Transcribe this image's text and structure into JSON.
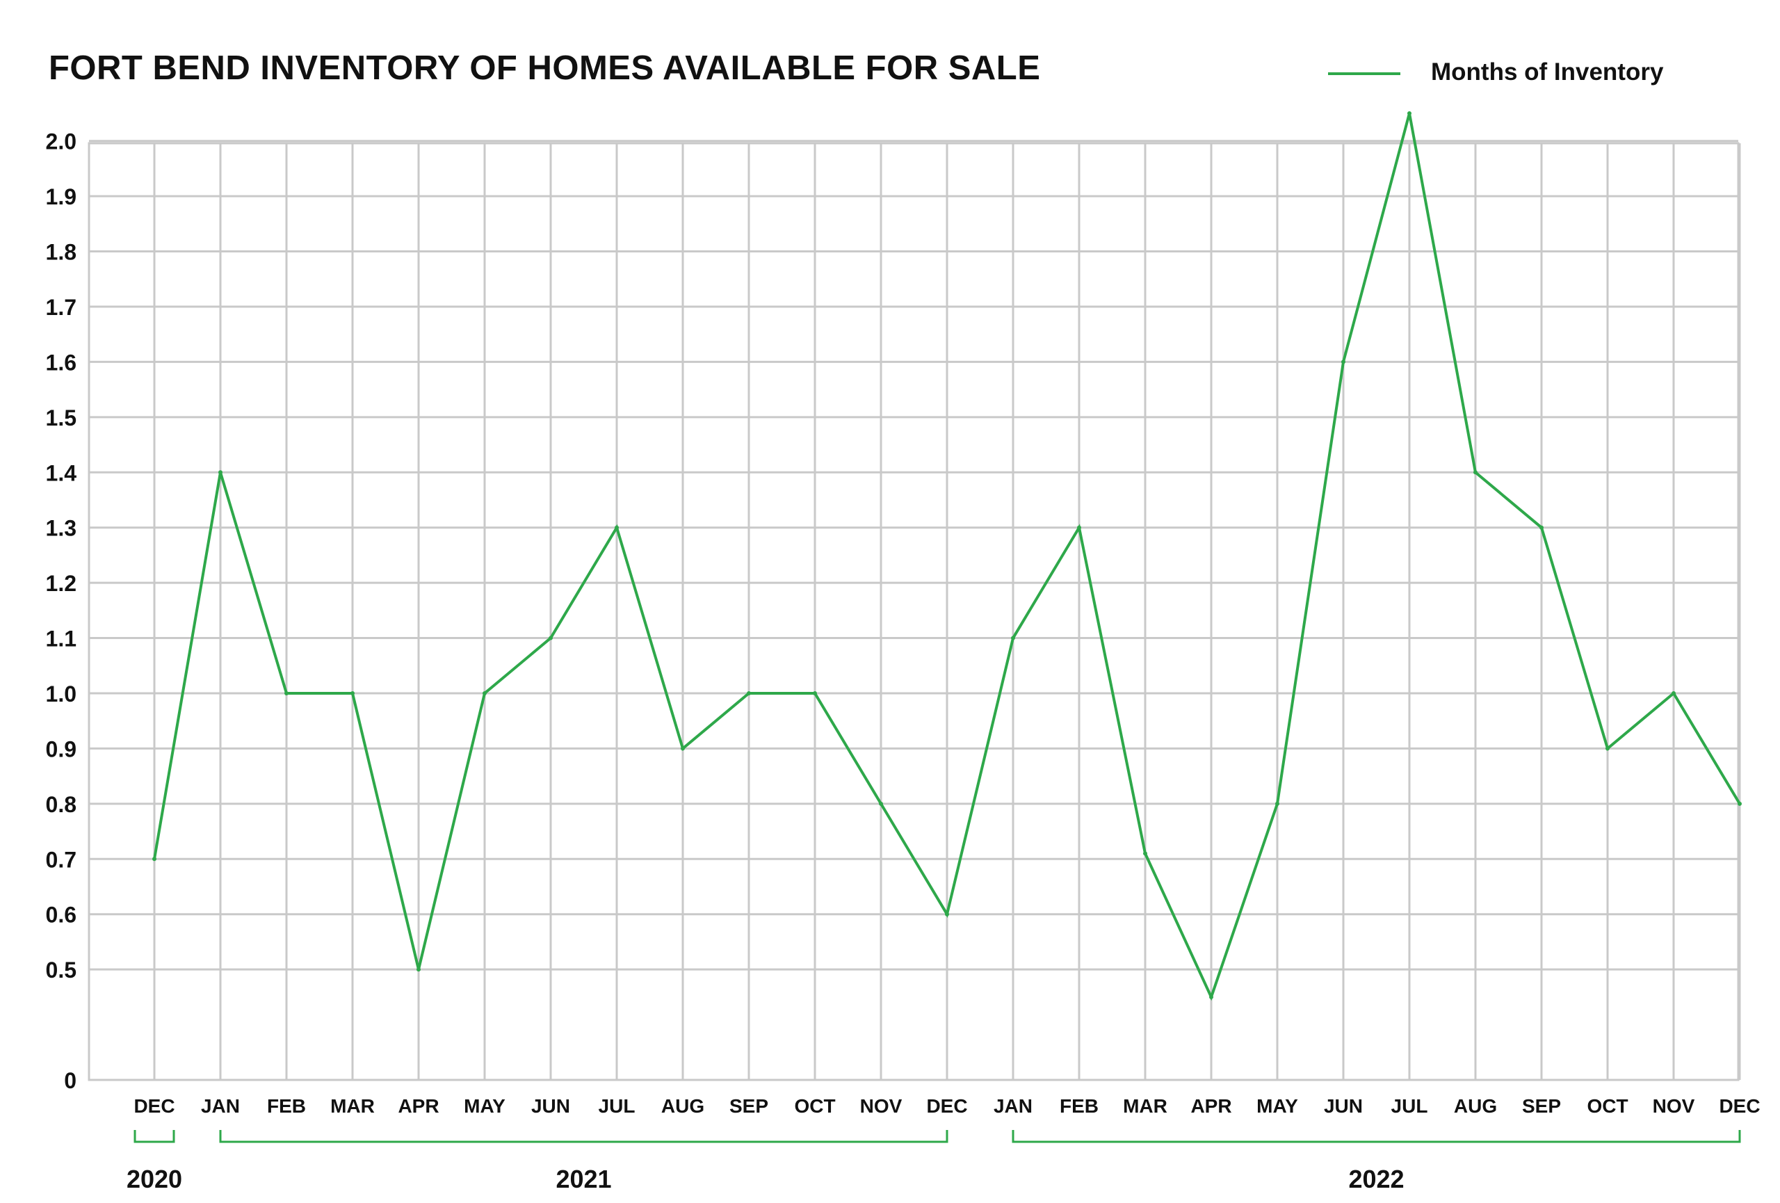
{
  "chart_data": {
    "type": "line",
    "title": "FORT BEND INVENTORY OF HOMES AVAILABLE FOR SALE",
    "xlabel": "",
    "ylabel": "",
    "grid": true,
    "legend_position": "top-right",
    "colors": {
      "series": "#2ea84a",
      "grid": "#c9c9c9",
      "text": "#111111"
    },
    "categories": [
      "DEC",
      "JAN",
      "FEB",
      "MAR",
      "APR",
      "MAY",
      "JUN",
      "JUL",
      "AUG",
      "SEP",
      "OCT",
      "NOV",
      "DEC",
      "JAN",
      "FEB",
      "MAR",
      "APR",
      "MAY",
      "JUN",
      "JUL",
      "AUG",
      "SEP",
      "OCT",
      "NOV",
      "DEC"
    ],
    "y_tick_labels": [
      "0",
      "0.5",
      "0.6",
      "0.7",
      "0.8",
      "0.9",
      "1.0",
      "1.1",
      "1.2",
      "1.3",
      "1.4",
      "1.5",
      "1.6",
      "1.7",
      "1.8",
      "1.9",
      "2.0"
    ],
    "ylim": [
      0,
      2.1
    ],
    "series": [
      {
        "name": "Months of Inventory",
        "values": [
          0.7,
          1.4,
          1.0,
          1.0,
          0.5,
          1.0,
          1.1,
          1.3,
          0.9,
          1.0,
          1.0,
          0.8,
          0.6,
          1.1,
          1.3,
          0.71,
          0.45,
          0.8,
          1.6,
          2.05,
          1.4,
          1.3,
          0.9,
          1.0,
          0.8
        ]
      }
    ],
    "year_groups": [
      {
        "label": "2020",
        "start_index": 0,
        "end_index": 0
      },
      {
        "label": "2021",
        "start_index": 1,
        "end_index": 12
      },
      {
        "label": "2022",
        "start_index": 13,
        "end_index": 24
      }
    ]
  }
}
